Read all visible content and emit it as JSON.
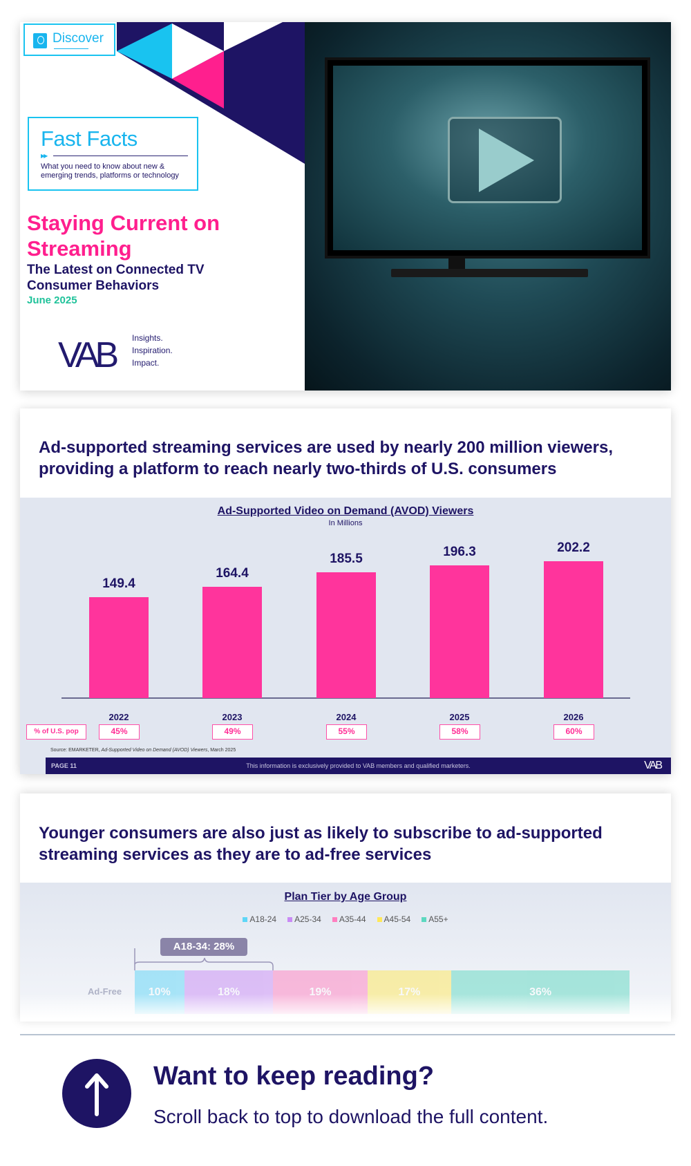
{
  "cover": {
    "discover_label": "Discover",
    "fast_facts_title": "Fast Facts",
    "fast_facts_desc": "What you need to know about new & emerging trends, platforms or technology",
    "title": "Staying Current on Streaming",
    "subtitle": "The Latest on Connected TV Consumer Behaviors",
    "date": "June 2025",
    "logo": "VAB",
    "tagline": [
      "Insights.",
      "Inspiration.",
      "Impact."
    ],
    "colors": {
      "pink": "#ff1f8e",
      "cyan": "#19b5ee",
      "navy": "#1e1464",
      "green": "#1fc29a"
    }
  },
  "slide1": {
    "headline": "Ad-supported streaming services are used by nearly 200 million viewers, providing a platform to reach nearly two-thirds of U.S. consumers",
    "pct_label": "% of U.S. pop",
    "percentages": [
      "45%",
      "49%",
      "55%",
      "58%",
      "60%"
    ],
    "source_prefix": "Source: EMARKETER, ",
    "source_title": "Ad-Supported Video on Demand (AVOD) Viewers",
    "source_suffix": ", March 2025",
    "page": "PAGE 11",
    "footer_note": "This information is exclusively provided to VAB members and qualified marketers.",
    "footer_logo": "VAB"
  },
  "slide2": {
    "headline": "Younger consumers are also just as likely to subscribe to ad-supported streaming services as they are to ad-free services",
    "callout": "A18-34: 28%"
  },
  "chart_data": [
    {
      "type": "bar",
      "title": "Ad-Supported Video on Demand (AVOD) Viewers",
      "subtitle": "In Millions",
      "categories": [
        "2022",
        "2023",
        "2024",
        "2025",
        "2026"
      ],
      "values": [
        149.4,
        164.4,
        185.5,
        196.3,
        202.2
      ],
      "labels": [
        "149.4",
        "164.4",
        "185.5",
        "196.3",
        "202.2"
      ],
      "color": "#ff349c",
      "grid": false
    },
    {
      "type": "bar",
      "stacked": true,
      "orientation": "horizontal",
      "title": "Plan Tier by Age Group",
      "categories": [
        "Ad-Free"
      ],
      "legend": "top",
      "series": [
        {
          "name": "A18-24",
          "values": [
            10
          ],
          "label": "10%",
          "color": "#5fd6f7"
        },
        {
          "name": "A25-34",
          "values": [
            18
          ],
          "label": "18%",
          "color": "#c98bf5"
        },
        {
          "name": "A35-44",
          "values": [
            19
          ],
          "label": "19%",
          "color": "#ff7fbf"
        },
        {
          "name": "A45-54",
          "values": [
            17
          ],
          "label": "17%",
          "color": "#ffe85a"
        },
        {
          "name": "A55+",
          "values": [
            36
          ],
          "label": "36%",
          "color": "#5ed8c0"
        }
      ]
    }
  ],
  "cta": {
    "heading": "Want to keep reading?",
    "text": "Scroll back to top to download the full content."
  }
}
